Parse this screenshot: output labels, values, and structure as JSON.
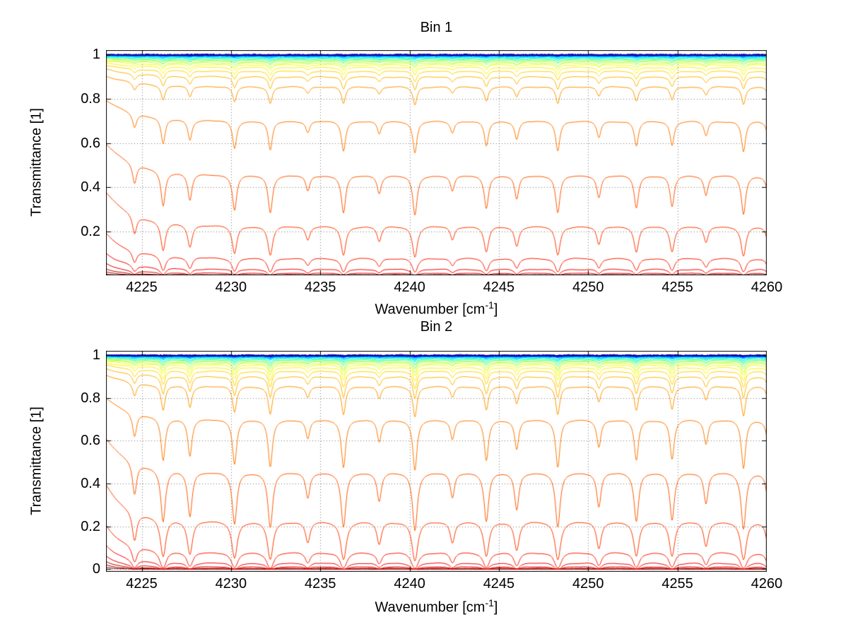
{
  "figure": {
    "background": "#FFFFFF",
    "description": "Two stacked spectral transmittance plots"
  },
  "chart_data": [
    {
      "type": "line",
      "title": "Bin 1",
      "xlabel": "Wavenumber [cm-1]",
      "xlabel_parts": {
        "prefix": "Wavenumber [cm",
        "sup": "-1",
        "suffix": "]"
      },
      "ylabel": "Transmittance [1]",
      "xlim": [
        4223,
        4260
      ],
      "ylim": [
        0.002,
        1.02
      ],
      "xticks": [
        4225,
        4230,
        4235,
        4240,
        4245,
        4250,
        4255,
        4260
      ],
      "xtick_labels": [
        "4225",
        "4230",
        "4235",
        "4240",
        "4245",
        "4250",
        "4255",
        "4260"
      ],
      "yticks": [
        1,
        0.8,
        0.6,
        0.4,
        0.2
      ],
      "ytick_labels": [
        "1",
        "0.8",
        "0.6",
        "0.4",
        "0.2"
      ],
      "grid": {
        "style": "dotted",
        "color": "#808080"
      },
      "legend": "none",
      "colormap": {
        "name": "jet",
        "positions": [
          0,
          0.125,
          0.375,
          0.625,
          0.875,
          1
        ],
        "colors": [
          "#000080",
          "#0000FF",
          "#00FFFF",
          "#FFFF00",
          "#FF0000",
          "#800000"
        ]
      },
      "series_flat_transmittance": [
        0.9995,
        0.999,
        0.9985,
        0.998,
        0.9975,
        0.997,
        0.9965,
        0.996,
        0.995,
        0.994,
        0.9925,
        0.991,
        0.989,
        0.987,
        0.9845,
        0.9815,
        0.978,
        0.974,
        0.9685,
        0.962,
        0.954,
        0.942,
        0.925,
        0.9,
        0.855,
        0.7,
        0.455,
        0.225,
        0.08,
        0.03,
        0.012,
        0.005,
        0.002,
        0.0005
      ],
      "absorption_lines": [
        {
          "position": 4224.6,
          "strength": 0.3
        },
        {
          "position": 4226.2,
          "strength": 0.55
        },
        {
          "position": 4227.7,
          "strength": 0.4
        },
        {
          "position": 4230.2,
          "strength": 0.55
        },
        {
          "position": 4232.2,
          "strength": 0.6
        },
        {
          "position": 4234.3,
          "strength": 0.22
        },
        {
          "position": 4236.3,
          "strength": 0.6
        },
        {
          "position": 4238.3,
          "strength": 0.25
        },
        {
          "position": 4240.3,
          "strength": 0.65
        },
        {
          "position": 4242.4,
          "strength": 0.22
        },
        {
          "position": 4244.3,
          "strength": 0.5
        },
        {
          "position": 4246.0,
          "strength": 0.35
        },
        {
          "position": 4248.3,
          "strength": 0.6
        },
        {
          "position": 4250.6,
          "strength": 0.32
        },
        {
          "position": 4252.7,
          "strength": 0.5
        },
        {
          "position": 4254.7,
          "strength": 0.48
        },
        {
          "position": 4256.6,
          "strength": 0.28
        },
        {
          "position": 4258.7,
          "strength": 0.62
        },
        {
          "position": 4260.1,
          "strength": 0.3
        }
      ],
      "line_gamma": 0.13,
      "line_strength_scale": 1.0,
      "left_edge": {
        "amplitude": 0.35,
        "decay": 1.8
      }
    },
    {
      "type": "line",
      "title": "Bin 2",
      "xlabel": "Wavenumber [cm-1]",
      "xlabel_parts": {
        "prefix": "Wavenumber [cm",
        "sup": "-1",
        "suffix": "]"
      },
      "ylabel": "Transmittance [1]",
      "xlim": [
        4223,
        4260
      ],
      "ylim": [
        -0.012,
        1.02
      ],
      "xticks": [
        4225,
        4230,
        4235,
        4240,
        4245,
        4250,
        4255,
        4260
      ],
      "xtick_labels": [
        "4225",
        "4230",
        "4235",
        "4240",
        "4245",
        "4250",
        "4255",
        "4260"
      ],
      "yticks": [
        1,
        0.8,
        0.6,
        0.4,
        0.2,
        0
      ],
      "ytick_labels": [
        "1",
        "0.8",
        "0.6",
        "0.4",
        "0.2",
        "0"
      ],
      "grid": {
        "style": "dotted",
        "color": "#808080"
      },
      "legend": "none",
      "colormap": {
        "name": "jet",
        "positions": [
          0,
          0.125,
          0.375,
          0.625,
          0.875,
          1
        ],
        "colors": [
          "#000080",
          "#0000FF",
          "#00FFFF",
          "#FFFF00",
          "#FF0000",
          "#800000"
        ]
      },
      "series_flat_transmittance": [
        0.9995,
        0.999,
        0.9985,
        0.998,
        0.9975,
        0.997,
        0.9965,
        0.996,
        0.995,
        0.994,
        0.9925,
        0.991,
        0.989,
        0.987,
        0.9845,
        0.9815,
        0.978,
        0.974,
        0.9685,
        0.962,
        0.954,
        0.942,
        0.925,
        0.9,
        0.855,
        0.7,
        0.455,
        0.225,
        0.08,
        0.03,
        0.012,
        0.005,
        0.002,
        0.0005
      ],
      "absorption_lines": [
        {
          "position": 4224.6,
          "strength": 0.3
        },
        {
          "position": 4226.2,
          "strength": 0.55
        },
        {
          "position": 4227.7,
          "strength": 0.45
        },
        {
          "position": 4230.2,
          "strength": 0.55
        },
        {
          "position": 4232.2,
          "strength": 0.6
        },
        {
          "position": 4234.3,
          "strength": 0.22
        },
        {
          "position": 4236.3,
          "strength": 0.6
        },
        {
          "position": 4238.3,
          "strength": 0.25
        },
        {
          "position": 4240.3,
          "strength": 0.65
        },
        {
          "position": 4242.4,
          "strength": 0.22
        },
        {
          "position": 4244.3,
          "strength": 0.5
        },
        {
          "position": 4246.0,
          "strength": 0.35
        },
        {
          "position": 4248.3,
          "strength": 0.6
        },
        {
          "position": 4250.6,
          "strength": 0.32
        },
        {
          "position": 4252.7,
          "strength": 0.5
        },
        {
          "position": 4254.7,
          "strength": 0.48
        },
        {
          "position": 4256.6,
          "strength": 0.28
        },
        {
          "position": 4258.7,
          "strength": 0.62
        },
        {
          "position": 4260.1,
          "strength": 0.3
        }
      ],
      "line_gamma": 0.13,
      "line_strength_scale": 1.8,
      "left_edge": {
        "amplitude": 0.38,
        "decay": 1.5
      }
    }
  ]
}
